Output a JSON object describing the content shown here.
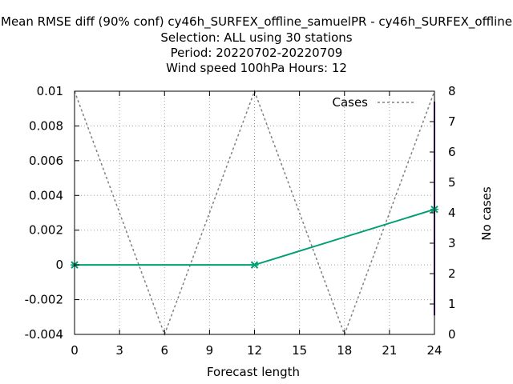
{
  "chart_data": {
    "type": "line",
    "title_lines": [
      "Mean RMSE diff (90% conf) cy46h_SURFEX_offline_samuelPR - cy46h_SURFEX_offline",
      "Selection: ALL using    30 stations",
      "Period: 20220702-20220709",
      "Wind speed 100hPa   Hours:  12"
    ],
    "xlabel": "Forecast length",
    "ylabel_right": "No cases",
    "x_ticks": [
      0,
      3,
      6,
      9,
      12,
      15,
      18,
      21,
      24
    ],
    "x_tick_labels": [
      "0",
      "3",
      "6",
      "9",
      "12",
      "15",
      "18",
      "21",
      "24"
    ],
    "y_ticks": [
      -0.004,
      -0.002,
      0,
      0.002,
      0.004,
      0.006,
      0.008,
      0.01
    ],
    "y_tick_labels": [
      "-0.004",
      "-0.002",
      "0",
      "0.002",
      "0.004",
      "0.006",
      "0.008",
      "0.01"
    ],
    "y2_ticks": [
      0,
      1,
      2,
      3,
      4,
      5,
      6,
      7,
      8
    ],
    "y2_tick_labels": [
      "0",
      "1",
      "2",
      "3",
      "4",
      "5",
      "6",
      "7",
      "8"
    ],
    "xlim": [
      0,
      24
    ],
    "ylim": [
      -0.004,
      0.01
    ],
    "y2lim": [
      0,
      8
    ],
    "grid": true,
    "legend_placement": "top-right",
    "series": [
      {
        "name": "",
        "axis": "left",
        "color": "#009e73",
        "x": [
          0,
          12,
          24
        ],
        "y": [
          0,
          0,
          0.0032
        ]
      },
      {
        "name": "Cases",
        "axis": "right",
        "color": "#808080",
        "dashed": true,
        "x": [
          0,
          6,
          12,
          18,
          24
        ],
        "y": [
          8,
          0,
          8,
          0,
          8
        ]
      }
    ],
    "error_bars": [
      {
        "axis": "left",
        "color": "#4b0082",
        "x": 24,
        "low": -0.0029,
        "high": 0.0094
      }
    ]
  }
}
